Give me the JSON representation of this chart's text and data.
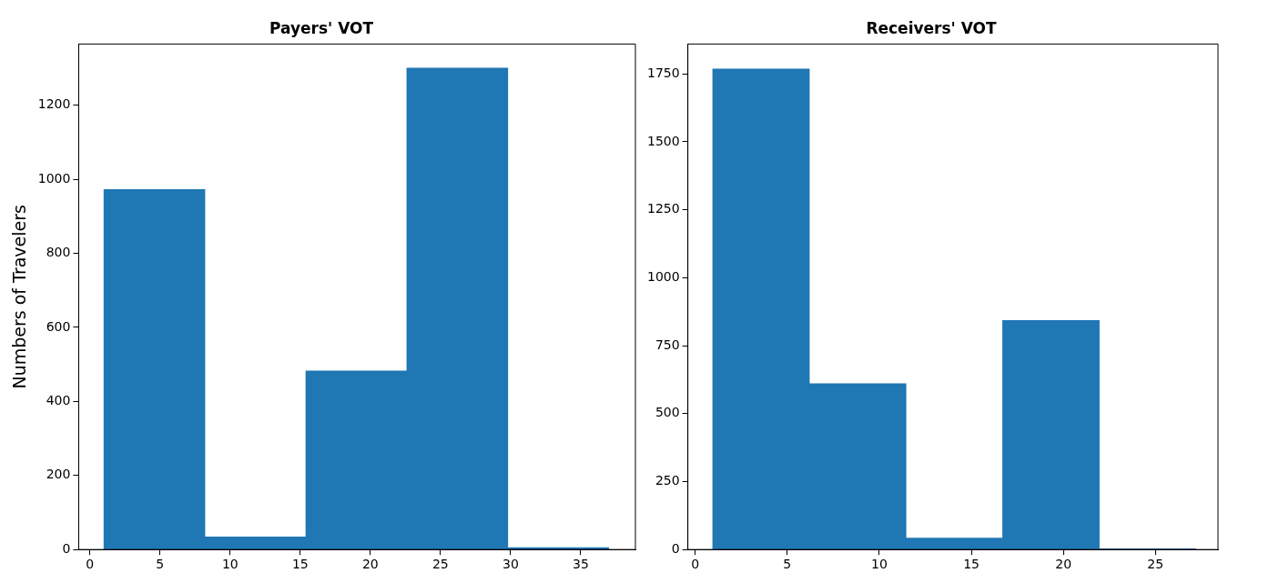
{
  "chart_data": [
    {
      "type": "histogram",
      "title": "Payers' VOT",
      "ylabel": "Numbers of Travelers",
      "bins": [
        1.0,
        8.2,
        15.4,
        22.6,
        29.8,
        37.0
      ],
      "values": [
        972,
        34,
        482,
        1300,
        5
      ],
      "color": "#1f77b4",
      "xlim": [
        -0.8,
        38.9
      ],
      "xticks": [
        0,
        5,
        10,
        15,
        20,
        25,
        30,
        35
      ],
      "ylim": [
        0,
        1365
      ],
      "yticks": [
        0,
        200,
        400,
        600,
        800,
        1000,
        1200
      ],
      "grid": false,
      "legend": false
    },
    {
      "type": "histogram",
      "title": "Receivers' VOT",
      "bins": [
        0.95,
        6.2,
        11.45,
        16.7,
        21.95,
        27.2
      ],
      "values": [
        1768,
        610,
        42,
        843,
        3
      ],
      "color": "#1f77b4",
      "xlim": [
        -0.4,
        28.4
      ],
      "xticks": [
        0,
        5,
        10,
        15,
        20,
        25
      ],
      "ylim": [
        0,
        1860
      ],
      "yticks": [
        0,
        250,
        500,
        750,
        1000,
        1250,
        1500,
        1750
      ],
      "grid": false,
      "legend": false
    }
  ]
}
